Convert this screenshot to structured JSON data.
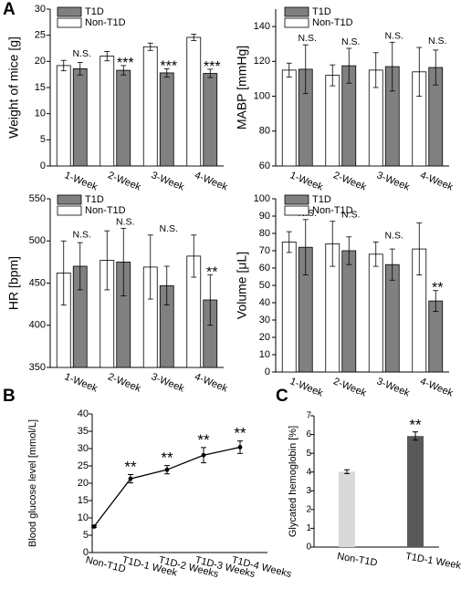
{
  "panel_labels": {
    "a": "A",
    "b": "B",
    "c": "C"
  },
  "chart_data": [
    {
      "id": "weight",
      "type": "bar",
      "ylabel": "Weight of mice [g]",
      "ylim": [
        0,
        30
      ],
      "yticks": [
        0,
        5,
        10,
        15,
        20,
        25,
        30
      ],
      "categories": [
        "1-Week",
        "2-Week",
        "3-Week",
        "4-Week"
      ],
      "series": [
        {
          "name": "Non-T1D",
          "color": "#ffffff",
          "values": [
            19.2,
            21.0,
            22.8,
            24.6
          ],
          "errors": [
            1.0,
            0.9,
            0.7,
            0.6
          ]
        },
        {
          "name": "T1D",
          "color": "#808080",
          "values": [
            18.6,
            18.3,
            17.8,
            17.7
          ],
          "errors": [
            1.2,
            0.9,
            0.8,
            0.8
          ]
        }
      ],
      "annotations": [
        "N.S.",
        "***",
        "***",
        "***"
      ],
      "legend": "top-left"
    },
    {
      "id": "mabp",
      "type": "bar",
      "ylabel": "MABP [mmHg]",
      "ylim": [
        60,
        150
      ],
      "yticks": [
        60,
        80,
        100,
        120,
        140
      ],
      "categories": [
        "1-Week",
        "2-Week",
        "3-Week",
        "4-Week"
      ],
      "series": [
        {
          "name": "Non-T1D",
          "color": "#ffffff",
          "values": [
            115,
            112,
            115,
            114
          ],
          "errors": [
            4,
            6,
            10,
            14
          ]
        },
        {
          "name": "T1D",
          "color": "#808080",
          "values": [
            115.5,
            117.5,
            117,
            116.5
          ],
          "errors": [
            14,
            10,
            14,
            10
          ]
        }
      ],
      "annotations": [
        "N.S.",
        "N.S.",
        "N.S.",
        "N.S."
      ],
      "legend": "top-left"
    },
    {
      "id": "hr",
      "type": "bar",
      "ylabel": "HR [bpm]",
      "ylim": [
        350,
        550
      ],
      "yticks": [
        350,
        400,
        450,
        500,
        550
      ],
      "categories": [
        "1-Week",
        "2-Week",
        "3-Week",
        "4-Week"
      ],
      "series": [
        {
          "name": "Non-T1D",
          "color": "#ffffff",
          "values": [
            462,
            477,
            469,
            482
          ],
          "errors": [
            38,
            35,
            38,
            25
          ]
        },
        {
          "name": "T1D",
          "color": "#808080",
          "values": [
            470,
            475,
            447,
            430
          ],
          "errors": [
            28,
            40,
            23,
            30
          ]
        }
      ],
      "annotations": [
        "N.S.",
        "N.S.",
        "N.S.",
        "**"
      ],
      "legend": "top-left"
    },
    {
      "id": "volume",
      "type": "bar",
      "ylabel": "Volume [μL]",
      "ylim": [
        0,
        100
      ],
      "yticks": [
        0,
        10,
        20,
        30,
        40,
        50,
        60,
        70,
        80,
        90,
        100
      ],
      "categories": [
        "1-Week",
        "2-Week",
        "3-Week",
        "4-Week"
      ],
      "series": [
        {
          "name": "Non-T1D",
          "color": "#ffffff",
          "values": [
            75,
            74,
            68,
            71
          ],
          "errors": [
            6,
            13,
            7,
            15
          ]
        },
        {
          "name": "T1D",
          "color": "#808080",
          "values": [
            72,
            70,
            62,
            41
          ],
          "errors": [
            16,
            8,
            9,
            6
          ]
        }
      ],
      "annotations": [
        "N.S.",
        "N.S.",
        "N.S.",
        "**"
      ],
      "legend": "top-left"
    },
    {
      "id": "glucose",
      "type": "line",
      "ylabel": "Blood glucose level [mmol/L]",
      "ylim": [
        0,
        40
      ],
      "yticks": [
        0,
        5,
        10,
        15,
        20,
        25,
        30,
        35,
        40
      ],
      "categories": [
        "Non-T1D",
        "T1D-1 Week",
        "T1D-2 Weeks",
        "T1D-3 Weeks",
        "T1D-4 Weeks"
      ],
      "values": [
        7.5,
        21.3,
        23.9,
        28.1,
        30.4
      ],
      "errors": [
        0.3,
        1.2,
        1.2,
        2.2,
        1.8
      ],
      "annotations": [
        "",
        "**",
        "**",
        "**",
        "**"
      ]
    },
    {
      "id": "hba1c",
      "type": "bar",
      "ylabel": "Glycated hemoglobin [%]",
      "ylim": [
        0,
        7
      ],
      "yticks": [
        0,
        1,
        2,
        3,
        4,
        5,
        6,
        7
      ],
      "categories": [
        "Non-T1D",
        "T1D-1 Week"
      ],
      "values": [
        4.02,
        5.92
      ],
      "errors": [
        0.1,
        0.22
      ],
      "colors": [
        "#d9d9d9",
        "#595959"
      ],
      "annotations": [
        "",
        "**"
      ]
    }
  ]
}
